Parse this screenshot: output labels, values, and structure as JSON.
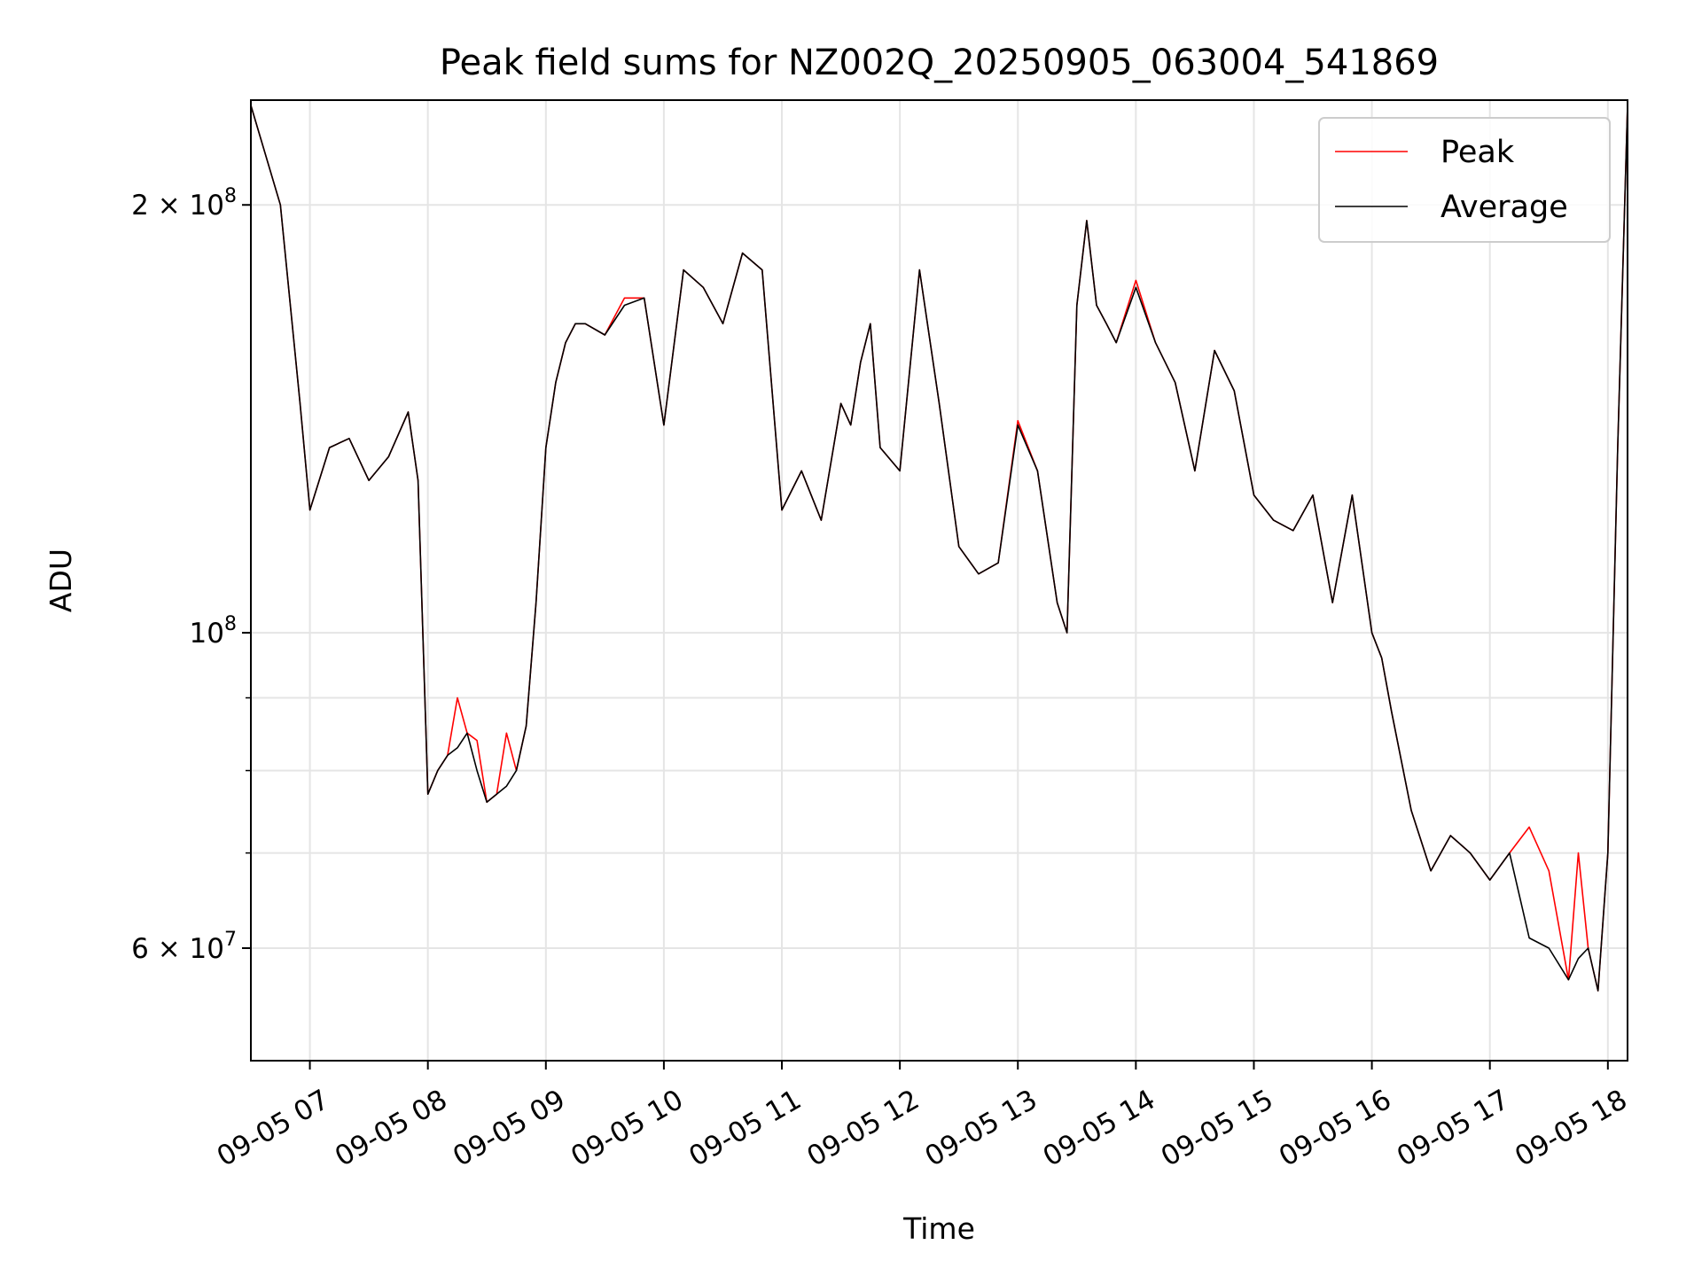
{
  "chart_data": {
    "type": "line",
    "title": "Peak field sums for NZ002Q_20250905_063004_541869",
    "xlabel": "Time",
    "ylabel": "ADU",
    "y_scale": "log",
    "ylim": [
      50000000,
      237000000
    ],
    "xlim": [
      "09-05 06:30",
      "09-05 18:10"
    ],
    "grid": true,
    "legend_position": "top-right",
    "x_ticks": [
      "09-05 07",
      "09-05 08",
      "09-05 09",
      "09-05 10",
      "09-05 11",
      "09-05 12",
      "09-05 13",
      "09-05 14",
      "09-05 15",
      "09-05 16",
      "09-05 17",
      "09-05 18"
    ],
    "y_ticks_major": [
      {
        "value": 60000000,
        "mantissa": "6",
        "base": "10",
        "exponent": "7"
      },
      {
        "value": 100000000,
        "mantissa": "",
        "base": "10",
        "exponent": "8"
      },
      {
        "value": 200000000,
        "mantissa": "2",
        "base": "10",
        "exponent": "8"
      }
    ],
    "y_minor_gridlines": [
      70000000,
      80000000,
      90000000
    ],
    "x": [
      "06:30",
      "06:45",
      "06:55",
      "07:00",
      "07:10",
      "07:20",
      "07:30",
      "07:40",
      "07:50",
      "07:55",
      "08:00",
      "08:05",
      "08:10",
      "08:15",
      "08:20",
      "08:25",
      "08:30",
      "08:35",
      "08:40",
      "08:45",
      "08:50",
      "08:55",
      "09:00",
      "09:05",
      "09:10",
      "09:15",
      "09:20",
      "09:30",
      "09:40",
      "09:50",
      "10:00",
      "10:10",
      "10:20",
      "10:30",
      "10:40",
      "10:50",
      "11:00",
      "11:10",
      "11:20",
      "11:30",
      "11:35",
      "11:40",
      "11:45",
      "11:50",
      "12:00",
      "12:10",
      "12:20",
      "12:30",
      "12:40",
      "12:50",
      "13:00",
      "13:10",
      "13:20",
      "13:25",
      "13:30",
      "13:35",
      "13:40",
      "13:45",
      "13:50",
      "14:00",
      "14:10",
      "14:20",
      "14:30",
      "14:40",
      "14:50",
      "15:00",
      "15:10",
      "15:20",
      "15:30",
      "15:40",
      "15:50",
      "16:00",
      "16:05",
      "16:10",
      "16:20",
      "16:30",
      "16:40",
      "16:50",
      "17:00",
      "17:10",
      "17:20",
      "17:30",
      "17:40",
      "17:45",
      "17:50",
      "17:55",
      "18:00",
      "18:05",
      "18:10"
    ],
    "series": [
      {
        "name": "Average",
        "color": "#000000",
        "values": [
          235000000,
          200000000,
          145000000,
          122000000,
          135000000,
          137000000,
          128000000,
          133000000,
          143000000,
          128000000,
          77000000,
          80000000,
          82000000,
          83000000,
          85000000,
          80000000,
          76000000,
          77000000,
          78000000,
          80000000,
          86000000,
          105000000,
          135000000,
          150000000,
          160000000,
          165000000,
          165000000,
          162000000,
          170000000,
          172000000,
          140000000,
          180000000,
          175000000,
          165000000,
          185000000,
          180000000,
          122000000,
          130000000,
          120000000,
          145000000,
          140000000,
          155000000,
          165000000,
          135000000,
          130000000,
          180000000,
          145000000,
          115000000,
          110000000,
          112000000,
          140000000,
          130000000,
          105000000,
          100000000,
          170000000,
          195000000,
          170000000,
          165000000,
          160000000,
          175000000,
          160000000,
          150000000,
          130000000,
          158000000,
          148000000,
          125000000,
          120000000,
          118000000,
          125000000,
          105000000,
          125000000,
          100000000,
          96000000,
          88000000,
          75000000,
          68000000,
          72000000,
          70000000,
          67000000,
          70000000,
          61000000,
          60000000,
          57000000,
          59000000,
          60000000,
          56000000,
          70000000,
          135000000,
          235000000
        ]
      },
      {
        "name": "Peak",
        "color": "#ff0000",
        "values": [
          235000000,
          200000000,
          145000000,
          122000000,
          135000000,
          137000000,
          128000000,
          133000000,
          143000000,
          128000000,
          77000000,
          80000000,
          82000000,
          90000000,
          85000000,
          84000000,
          76000000,
          77000000,
          85000000,
          80000000,
          86000000,
          105000000,
          135000000,
          150000000,
          160000000,
          165000000,
          165000000,
          162000000,
          172000000,
          172000000,
          140000000,
          180000000,
          175000000,
          165000000,
          185000000,
          180000000,
          122000000,
          130000000,
          120000000,
          145000000,
          140000000,
          155000000,
          165000000,
          135000000,
          130000000,
          180000000,
          145000000,
          115000000,
          110000000,
          112000000,
          141000000,
          130000000,
          105000000,
          100000000,
          170000000,
          195000000,
          170000000,
          165000000,
          160000000,
          177000000,
          160000000,
          150000000,
          130000000,
          158000000,
          148000000,
          125000000,
          120000000,
          118000000,
          125000000,
          105000000,
          125000000,
          100000000,
          96000000,
          88000000,
          75000000,
          68000000,
          72000000,
          70000000,
          67000000,
          70000000,
          73000000,
          68000000,
          57000000,
          70000000,
          60000000,
          56000000,
          70000000,
          135000000,
          235000000
        ]
      }
    ]
  }
}
